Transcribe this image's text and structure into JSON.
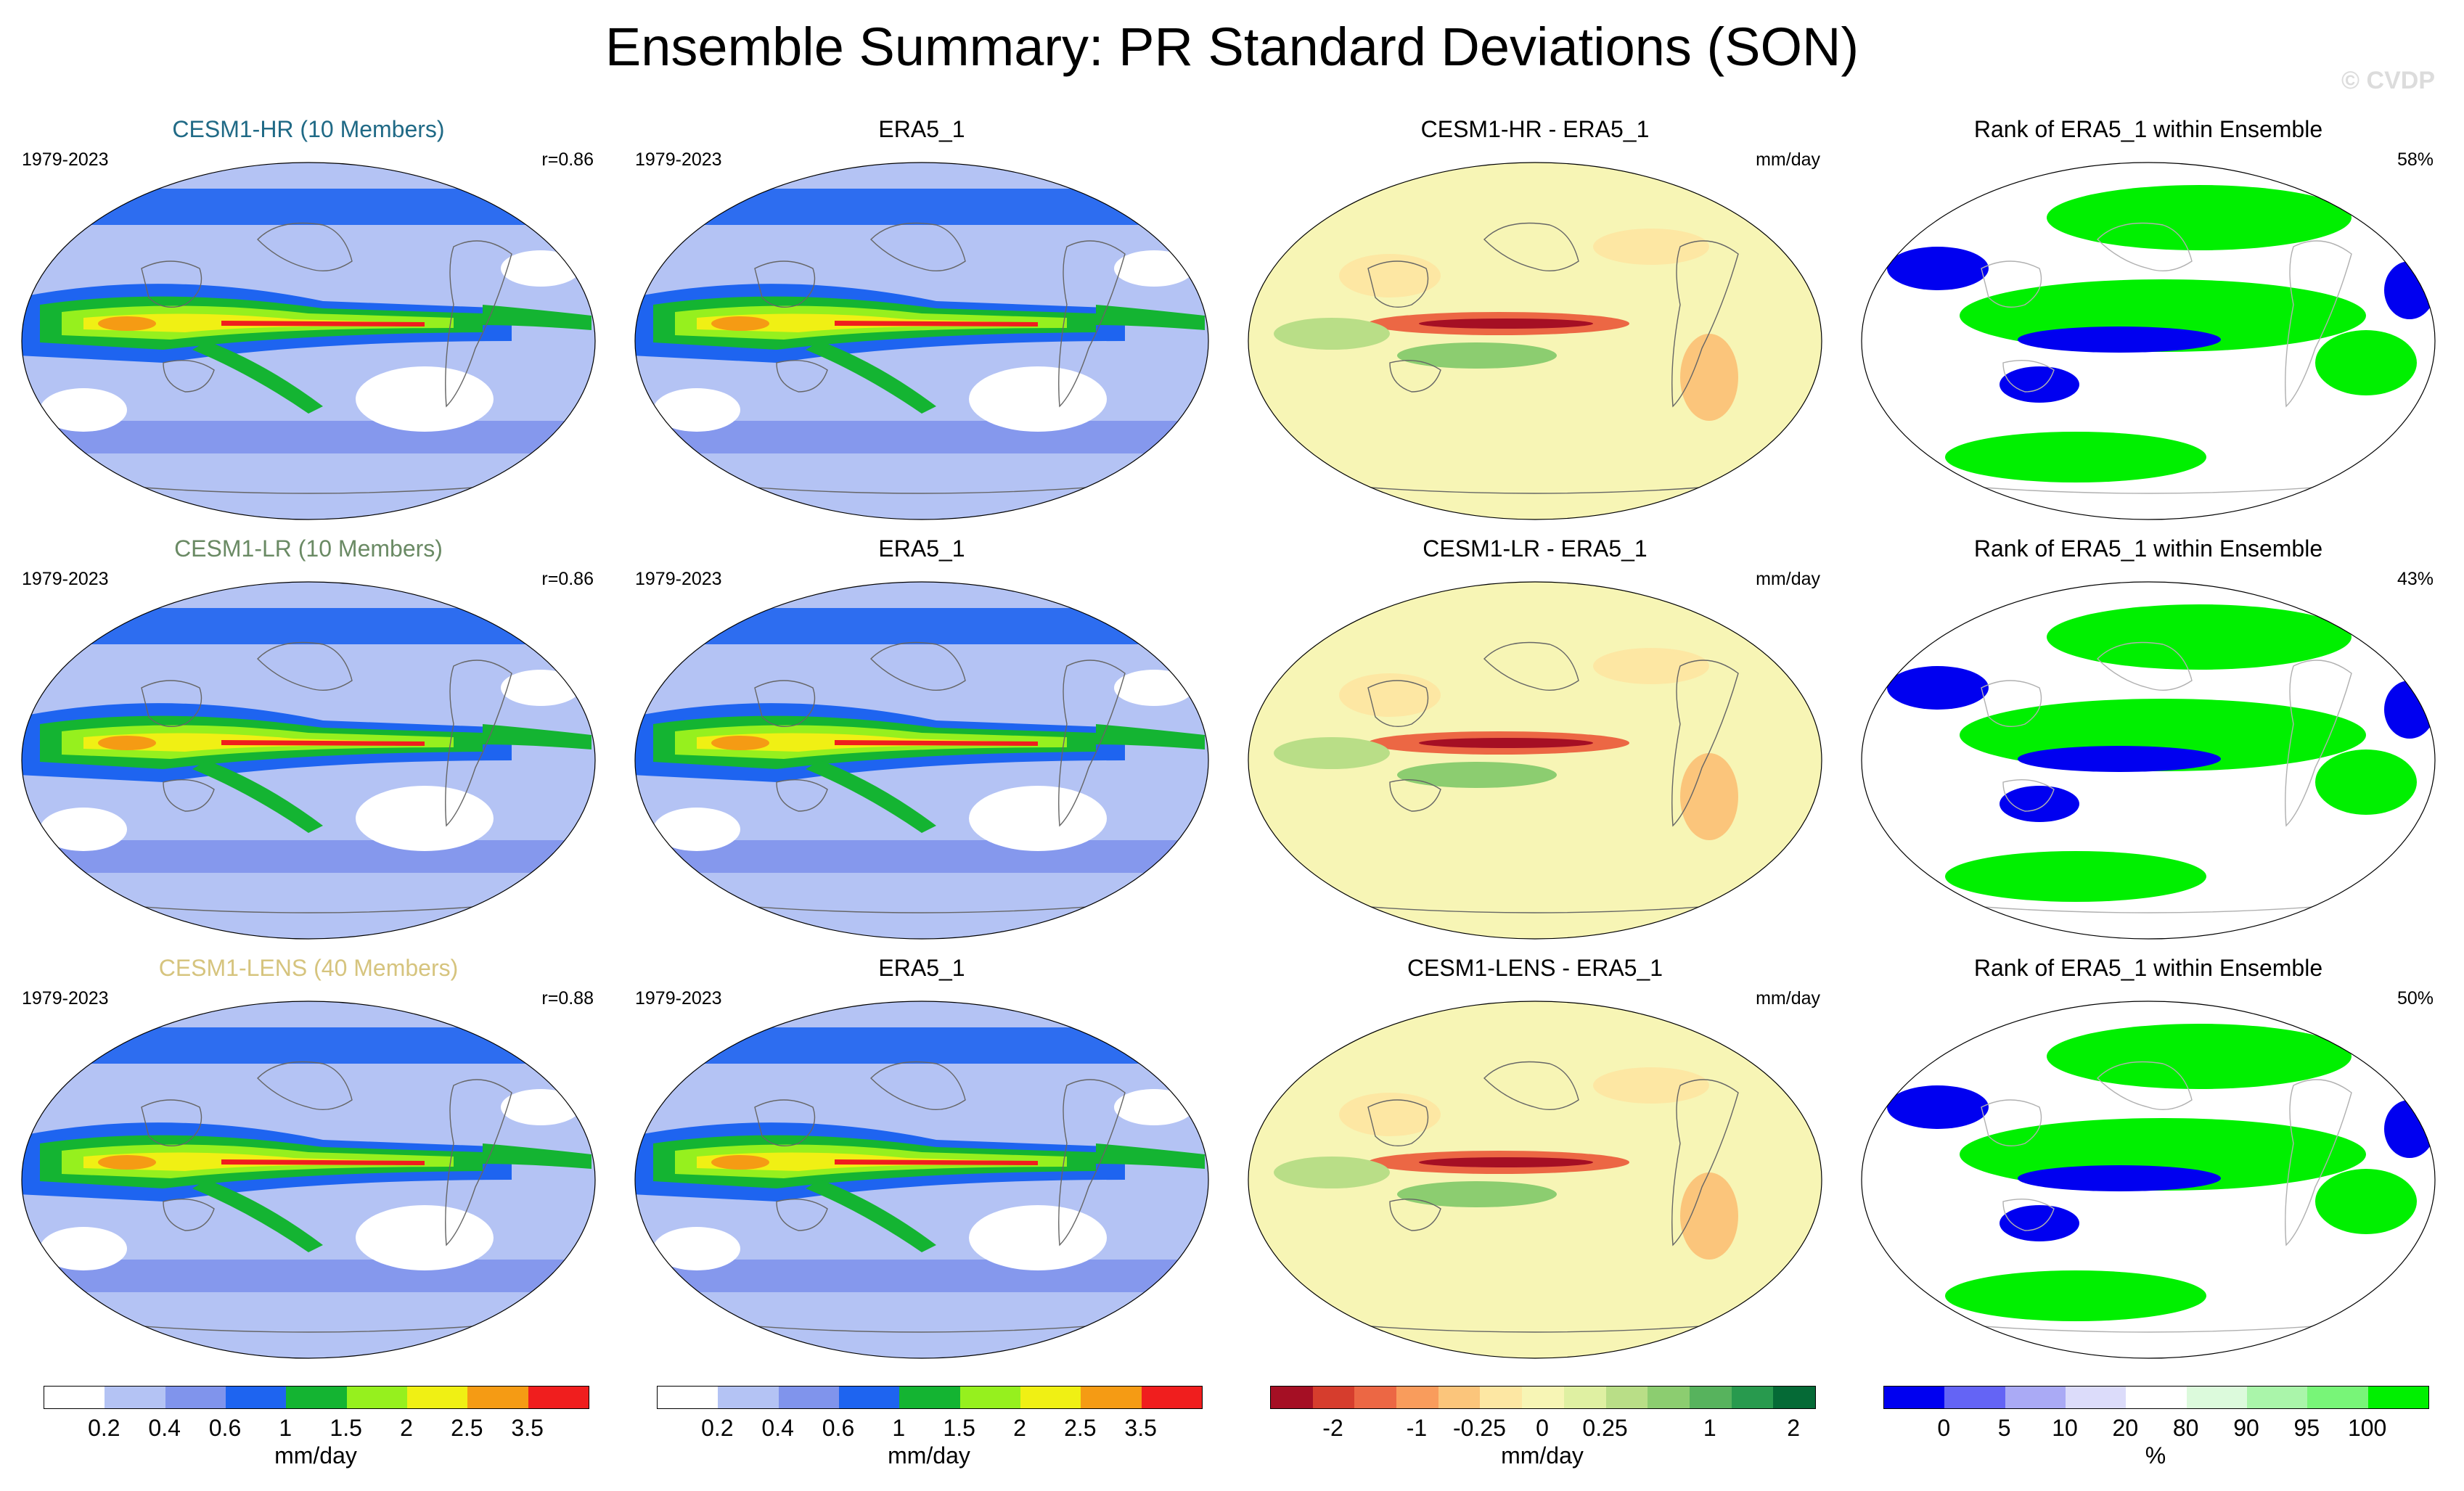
{
  "title": "Ensemble Summary: PR Standard Deviations (SON)",
  "watermark": "© CVDP",
  "colors": {
    "sd": [
      "#ffffff",
      "#b4c3f4",
      "#8094ec",
      "#1e64f0",
      "#14b432",
      "#96f01e",
      "#f0f014",
      "#f59b14",
      "#f01e1e"
    ],
    "diff": [
      "#a50f24",
      "#d63d2d",
      "#ec6744",
      "#f99c5c",
      "#fbc57b",
      "#fde7a3",
      "#f7f5b5",
      "#dff0a2",
      "#b9de87",
      "#8ccd70",
      "#57b35d",
      "#289a4e",
      "#056a36"
    ],
    "rank": [
      "#0000f0",
      "#6464f5",
      "#aaaaf5",
      "#dcdcfa",
      "#ffffff",
      "#dcfadc",
      "#aaf5aa",
      "#78f578",
      "#00f000"
    ]
  },
  "rows": [
    {
      "model": {
        "title": "CESM1-HR (10 Members)",
        "title_color": "#206a86",
        "period": "1979-2023",
        "stat": "r=0.86"
      },
      "obs": {
        "title": "ERA5_1",
        "period": "1979-2023"
      },
      "diff": {
        "title": "CESM1-HR - ERA5_1",
        "unit": "mm/day"
      },
      "rank": {
        "title": "Rank of ERA5_1 within Ensemble",
        "stat": "58%"
      }
    },
    {
      "model": {
        "title": "CESM1-LR (10 Members)",
        "title_color": "#6a8a64",
        "period": "1979-2023",
        "stat": "r=0.86"
      },
      "obs": {
        "title": "ERA5_1",
        "period": "1979-2023"
      },
      "diff": {
        "title": "CESM1-LR - ERA5_1",
        "unit": "mm/day"
      },
      "rank": {
        "title": "Rank of ERA5_1 within Ensemble",
        "stat": "43%"
      }
    },
    {
      "model": {
        "title": "CESM1-LENS (40 Members)",
        "title_color": "#d6c47e",
        "period": "1979-2023",
        "stat": "r=0.88"
      },
      "obs": {
        "title": "ERA5_1",
        "period": "1979-2023"
      },
      "diff": {
        "title": "CESM1-LENS - ERA5_1",
        "unit": "mm/day"
      },
      "rank": {
        "title": "Rank of ERA5_1 within Ensemble",
        "stat": "50%"
      }
    }
  ],
  "colorbars": [
    {
      "ticks": [
        "0.2",
        "0.4",
        "0.6",
        "1",
        "1.5",
        "2",
        "2.5",
        "3.5"
      ],
      "unit": "mm/day"
    },
    {
      "ticks": [
        "0.2",
        "0.4",
        "0.6",
        "1",
        "1.5",
        "2",
        "2.5",
        "3.5"
      ],
      "unit": "mm/day"
    },
    {
      "ticks": [
        "-2",
        "-1",
        "-0.25",
        "0",
        "0.25",
        "1",
        "2"
      ],
      "unit": "mm/day"
    },
    {
      "ticks": [
        "0",
        "5",
        "10",
        "20",
        "80",
        "90",
        "95",
        "100"
      ],
      "unit": "%"
    }
  ]
}
